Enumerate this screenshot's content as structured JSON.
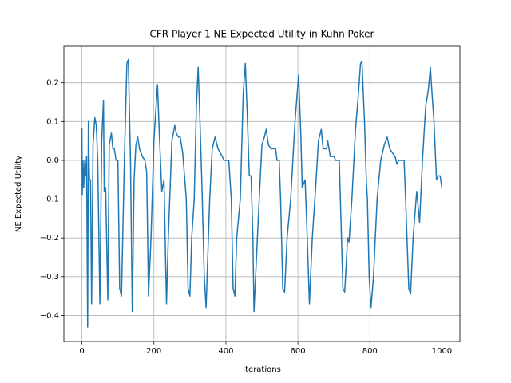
{
  "chart_data": {
    "type": "line",
    "title": "CFR Player 1 NE Expected Utility in Kuhn Poker",
    "x_label": "Iterations",
    "y_label": "NE Expected Utility",
    "color": "#1f77b4",
    "grid": true,
    "xlim": [
      -50,
      1050
    ],
    "ylim": [
      -0.467,
      0.294
    ],
    "xticks": [
      0,
      200,
      400,
      600,
      800,
      1000
    ],
    "yticks": [
      {
        "value": -0.4,
        "label": "−0.4"
      },
      {
        "value": -0.3,
        "label": "−0.3"
      },
      {
        "value": -0.2,
        "label": "−0.2"
      },
      {
        "value": -0.1,
        "label": "−0.1"
      },
      {
        "value": 0,
        "label": "0.0"
      },
      0.1,
      0.2
    ],
    "x": [
      0,
      1,
      3,
      5,
      8,
      10,
      13,
      16,
      18,
      21,
      24,
      27,
      31,
      36,
      40,
      44,
      50,
      55,
      60,
      62,
      66,
      72,
      76,
      82,
      86,
      90,
      95,
      100,
      105,
      110,
      118,
      125,
      129,
      135,
      140,
      145,
      150,
      155,
      160,
      168,
      175,
      180,
      185,
      192,
      200,
      210,
      215,
      222,
      228,
      235,
      240,
      250,
      258,
      262,
      268,
      273,
      280,
      290,
      295,
      300,
      305,
      312,
      318,
      323,
      327,
      333,
      340,
      345,
      355,
      362,
      370,
      378,
      390,
      395,
      400,
      408,
      415,
      420,
      425,
      430,
      440,
      448,
      454,
      460,
      465,
      470,
      475,
      478,
      490,
      500,
      507,
      512,
      518,
      525,
      538,
      542,
      548,
      552,
      558,
      563,
      570,
      580,
      592,
      602,
      608,
      612,
      620,
      626,
      632,
      640,
      650,
      657,
      665,
      670,
      680,
      683,
      690,
      700,
      705,
      715,
      718,
      725,
      730,
      738,
      742,
      750,
      760,
      768,
      774,
      778,
      785,
      790,
      793,
      798,
      803,
      810,
      820,
      830,
      840,
      848,
      855,
      862,
      870,
      875,
      880,
      895,
      900,
      908,
      913,
      920,
      930,
      938,
      946,
      955,
      962,
      968,
      972,
      978,
      985,
      990,
      995,
      1000
    ],
    "values": [
      0.083,
      -0.09,
      0.0,
      -0.07,
      0.0,
      -0.04,
      0.01,
      -0.43,
      0.1,
      -0.05,
      -0.05,
      -0.37,
      0.04,
      0.11,
      0.09,
      0.0,
      -0.37,
      0.05,
      0.155,
      -0.08,
      -0.07,
      -0.36,
      0.04,
      0.07,
      0.03,
      0.03,
      0.0,
      0.0,
      -0.33,
      -0.35,
      0.0,
      0.25,
      0.26,
      0.0,
      -0.39,
      -0.05,
      0.04,
      0.06,
      0.03,
      0.01,
      0.0,
      -0.03,
      -0.35,
      -0.2,
      0.05,
      0.195,
      0.07,
      -0.08,
      -0.05,
      -0.37,
      -0.2,
      0.05,
      0.09,
      0.07,
      0.06,
      0.06,
      0.02,
      -0.1,
      -0.33,
      -0.35,
      -0.2,
      -0.1,
      0.14,
      0.24,
      0.13,
      -0.05,
      -0.3,
      -0.38,
      -0.1,
      0.03,
      0.06,
      0.03,
      0.01,
      0.0,
      0.0,
      0.0,
      -0.1,
      -0.33,
      -0.35,
      -0.2,
      -0.1,
      0.17,
      0.25,
      0.1,
      -0.04,
      -0.04,
      -0.2,
      -0.39,
      -0.15,
      0.04,
      0.06,
      0.08,
      0.04,
      0.03,
      0.03,
      0.0,
      0.0,
      -0.1,
      -0.33,
      -0.34,
      -0.2,
      -0.1,
      0.1,
      0.22,
      0.07,
      -0.07,
      -0.05,
      -0.2,
      -0.37,
      -0.2,
      -0.06,
      0.05,
      0.08,
      0.03,
      0.03,
      0.05,
      0.01,
      0.01,
      0.0,
      0.0,
      -0.1,
      -0.33,
      -0.34,
      -0.2,
      -0.21,
      -0.1,
      0.08,
      0.17,
      0.25,
      0.255,
      0.1,
      -0.05,
      -0.1,
      -0.3,
      -0.38,
      -0.3,
      -0.1,
      0.0,
      0.04,
      0.06,
      0.03,
      0.02,
      0.01,
      -0.01,
      0.0,
      0.0,
      -0.12,
      -0.33,
      -0.345,
      -0.2,
      -0.08,
      -0.16,
      0.0,
      0.14,
      0.18,
      0.24,
      0.18,
      0.1,
      -0.05,
      -0.04,
      -0.04,
      -0.07
    ]
  }
}
